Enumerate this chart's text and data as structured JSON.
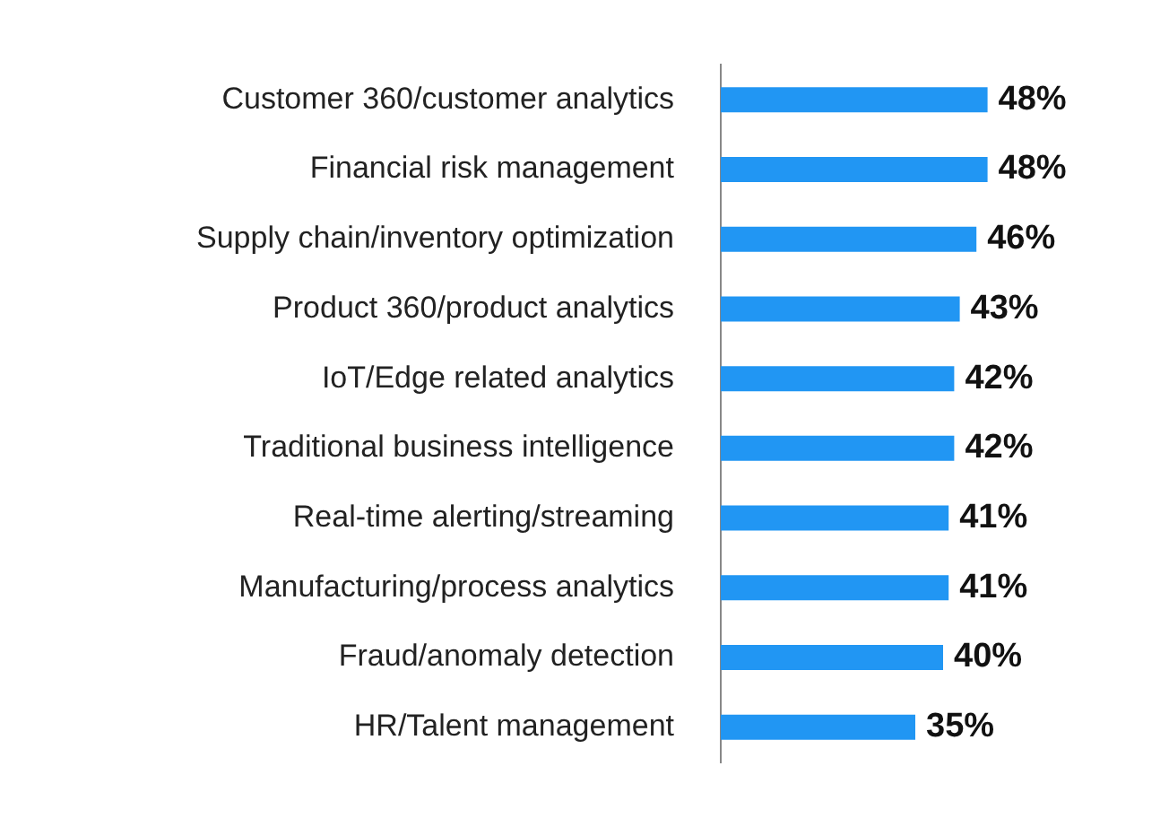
{
  "chart_data": {
    "type": "bar",
    "orientation": "horizontal",
    "categories": [
      "Customer 360/customer analytics",
      "Financial risk management",
      "Supply chain/inventory optimization",
      "Product 360/product analytics",
      "IoT/Edge related analytics",
      "Traditional business intelligence",
      "Real-time alerting/streaming",
      "Manufacturing/process analytics",
      "Fraud/anomaly detection",
      "HR/Talent management"
    ],
    "values": [
      48,
      48,
      46,
      43,
      42,
      42,
      41,
      41,
      40,
      35
    ],
    "value_labels": [
      "48%",
      "48%",
      "46%",
      "43%",
      "42%",
      "42%",
      "41%",
      "41%",
      "40%",
      "35%"
    ],
    "color": "#2196f3",
    "grid": false,
    "legend": false,
    "tick_labels": "y"
  }
}
